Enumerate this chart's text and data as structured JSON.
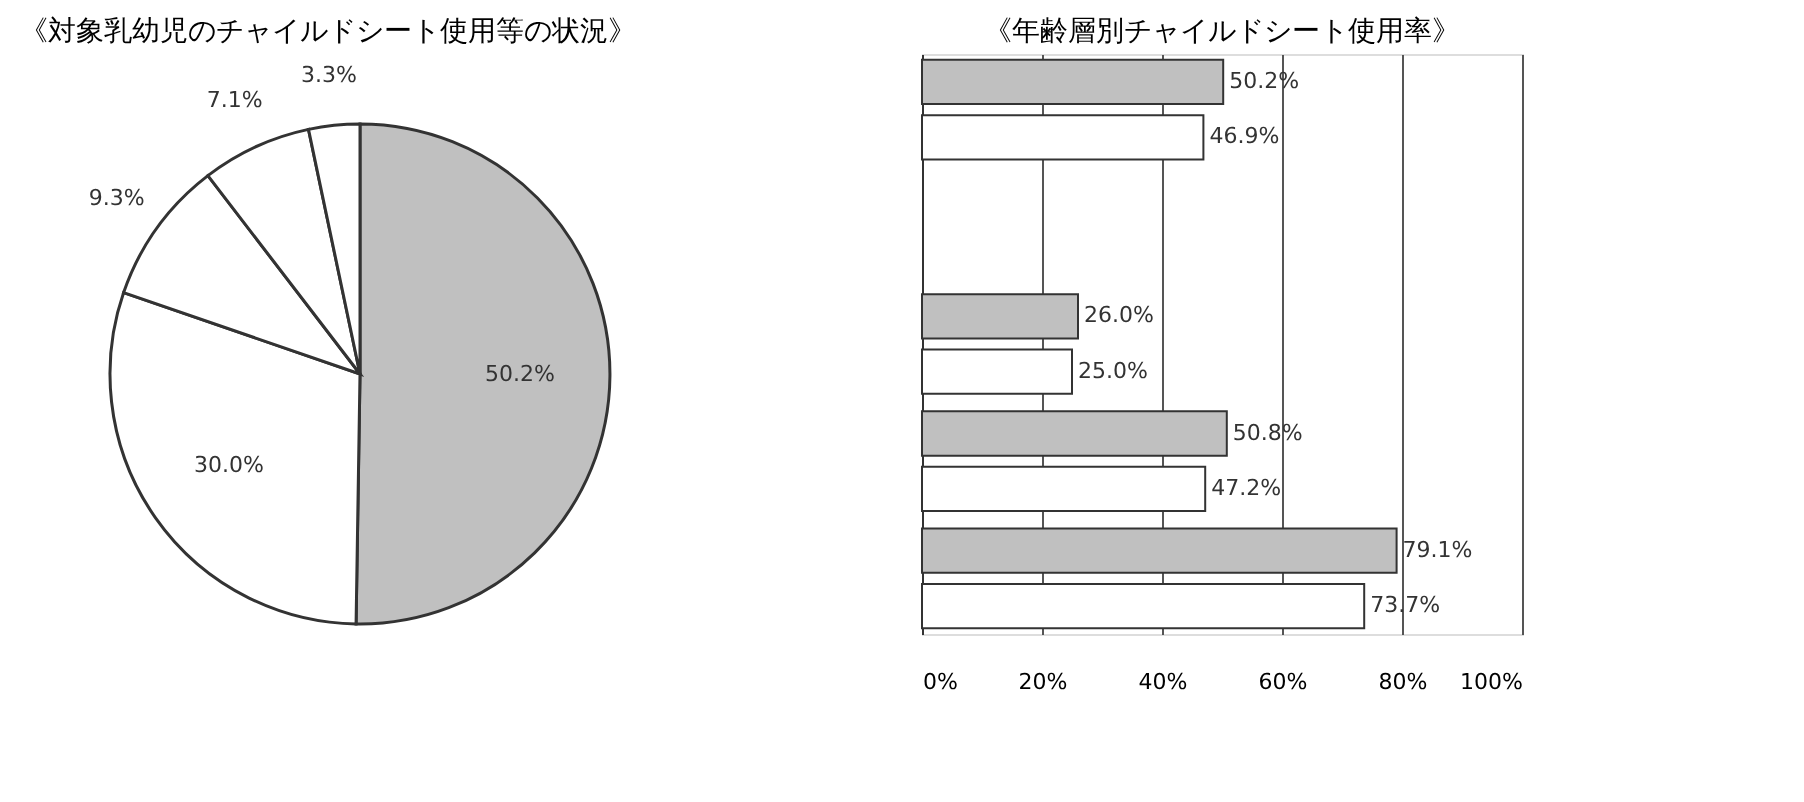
{
  "chart_data": [
    {
      "type": "pie",
      "title": "《対象乳幼児のチャイルドシート使用等の状況》",
      "categories": [
        null,
        null,
        null,
        null,
        null
      ],
      "values": [
        50.2,
        30.0,
        9.3,
        7.1,
        3.3
      ],
      "colors": [
        "#c0c0c0",
        "#ffffff",
        "#ffffff",
        "#ffffff",
        "#ffffff"
      ],
      "value_labels": [
        "50.2%",
        "30.0%",
        "9.3%",
        "7.1%",
        "3.3%"
      ]
    },
    {
      "type": "bar",
      "orientation": "horizontal",
      "title": "《年齢層別チャイルドシート使用率》",
      "categories": [
        null,
        null,
        null,
        null,
        null
      ],
      "series": [
        {
          "color": "#c0c0c0",
          "values": [
            50.2,
            null,
            26.0,
            50.8,
            79.1
          ],
          "value_labels": [
            "50.2%",
            null,
            "26.0%",
            "50.8%",
            "79.1%"
          ]
        },
        {
          "color": "#ffffff",
          "values": [
            46.9,
            null,
            25.0,
            47.2,
            73.7
          ],
          "value_labels": [
            "46.9%",
            null,
            "25.0%",
            "47.2%",
            "73.7%"
          ]
        }
      ],
      "xlim": [
        0,
        100
      ],
      "xticks": [
        {
          "value": 0,
          "label": "0%"
        },
        {
          "value": 20,
          "label": "20%"
        },
        {
          "value": 40,
          "label": "40%"
        },
        {
          "value": 60,
          "label": "60%"
        },
        {
          "value": 80,
          "label": "80%"
        },
        {
          "value": 100,
          "label": "100%"
        }
      ],
      "grid": "x"
    }
  ]
}
